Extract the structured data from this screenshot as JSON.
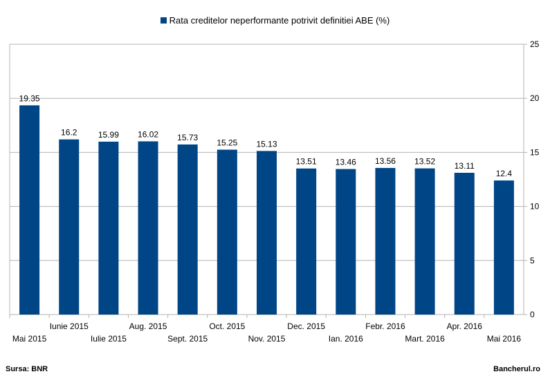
{
  "chart_data": {
    "type": "bar",
    "title": "",
    "xlabel": "",
    "ylabel": "",
    "categories": [
      "Mai 2015",
      "Iunie 2015",
      "Iulie 2015",
      "Aug. 2015",
      "Sept. 2015",
      "Oct. 2015",
      "Nov. 2015",
      "Dec. 2015",
      "Ian. 2016",
      "Febr. 2016",
      "Mart. 2016",
      "Apr. 2016",
      "Mai 2016"
    ],
    "series": [
      {
        "name": "Rata creditelor neperformante potrivit definitiei ABE (%)",
        "color": "#004586",
        "values": [
          19.35,
          16.2,
          15.99,
          16.02,
          15.73,
          15.25,
          15.13,
          13.51,
          13.46,
          13.56,
          13.52,
          13.11,
          12.4
        ]
      }
    ],
    "ylim": [
      0,
      25
    ],
    "yticks": [
      0,
      5,
      10,
      15,
      20,
      25
    ],
    "y_axis_side": "right",
    "grid": true,
    "legend_position": "top-center",
    "data_labels": true
  },
  "footer": {
    "source": "Sursa: BNR",
    "brand": "Bancherul.ro"
  }
}
